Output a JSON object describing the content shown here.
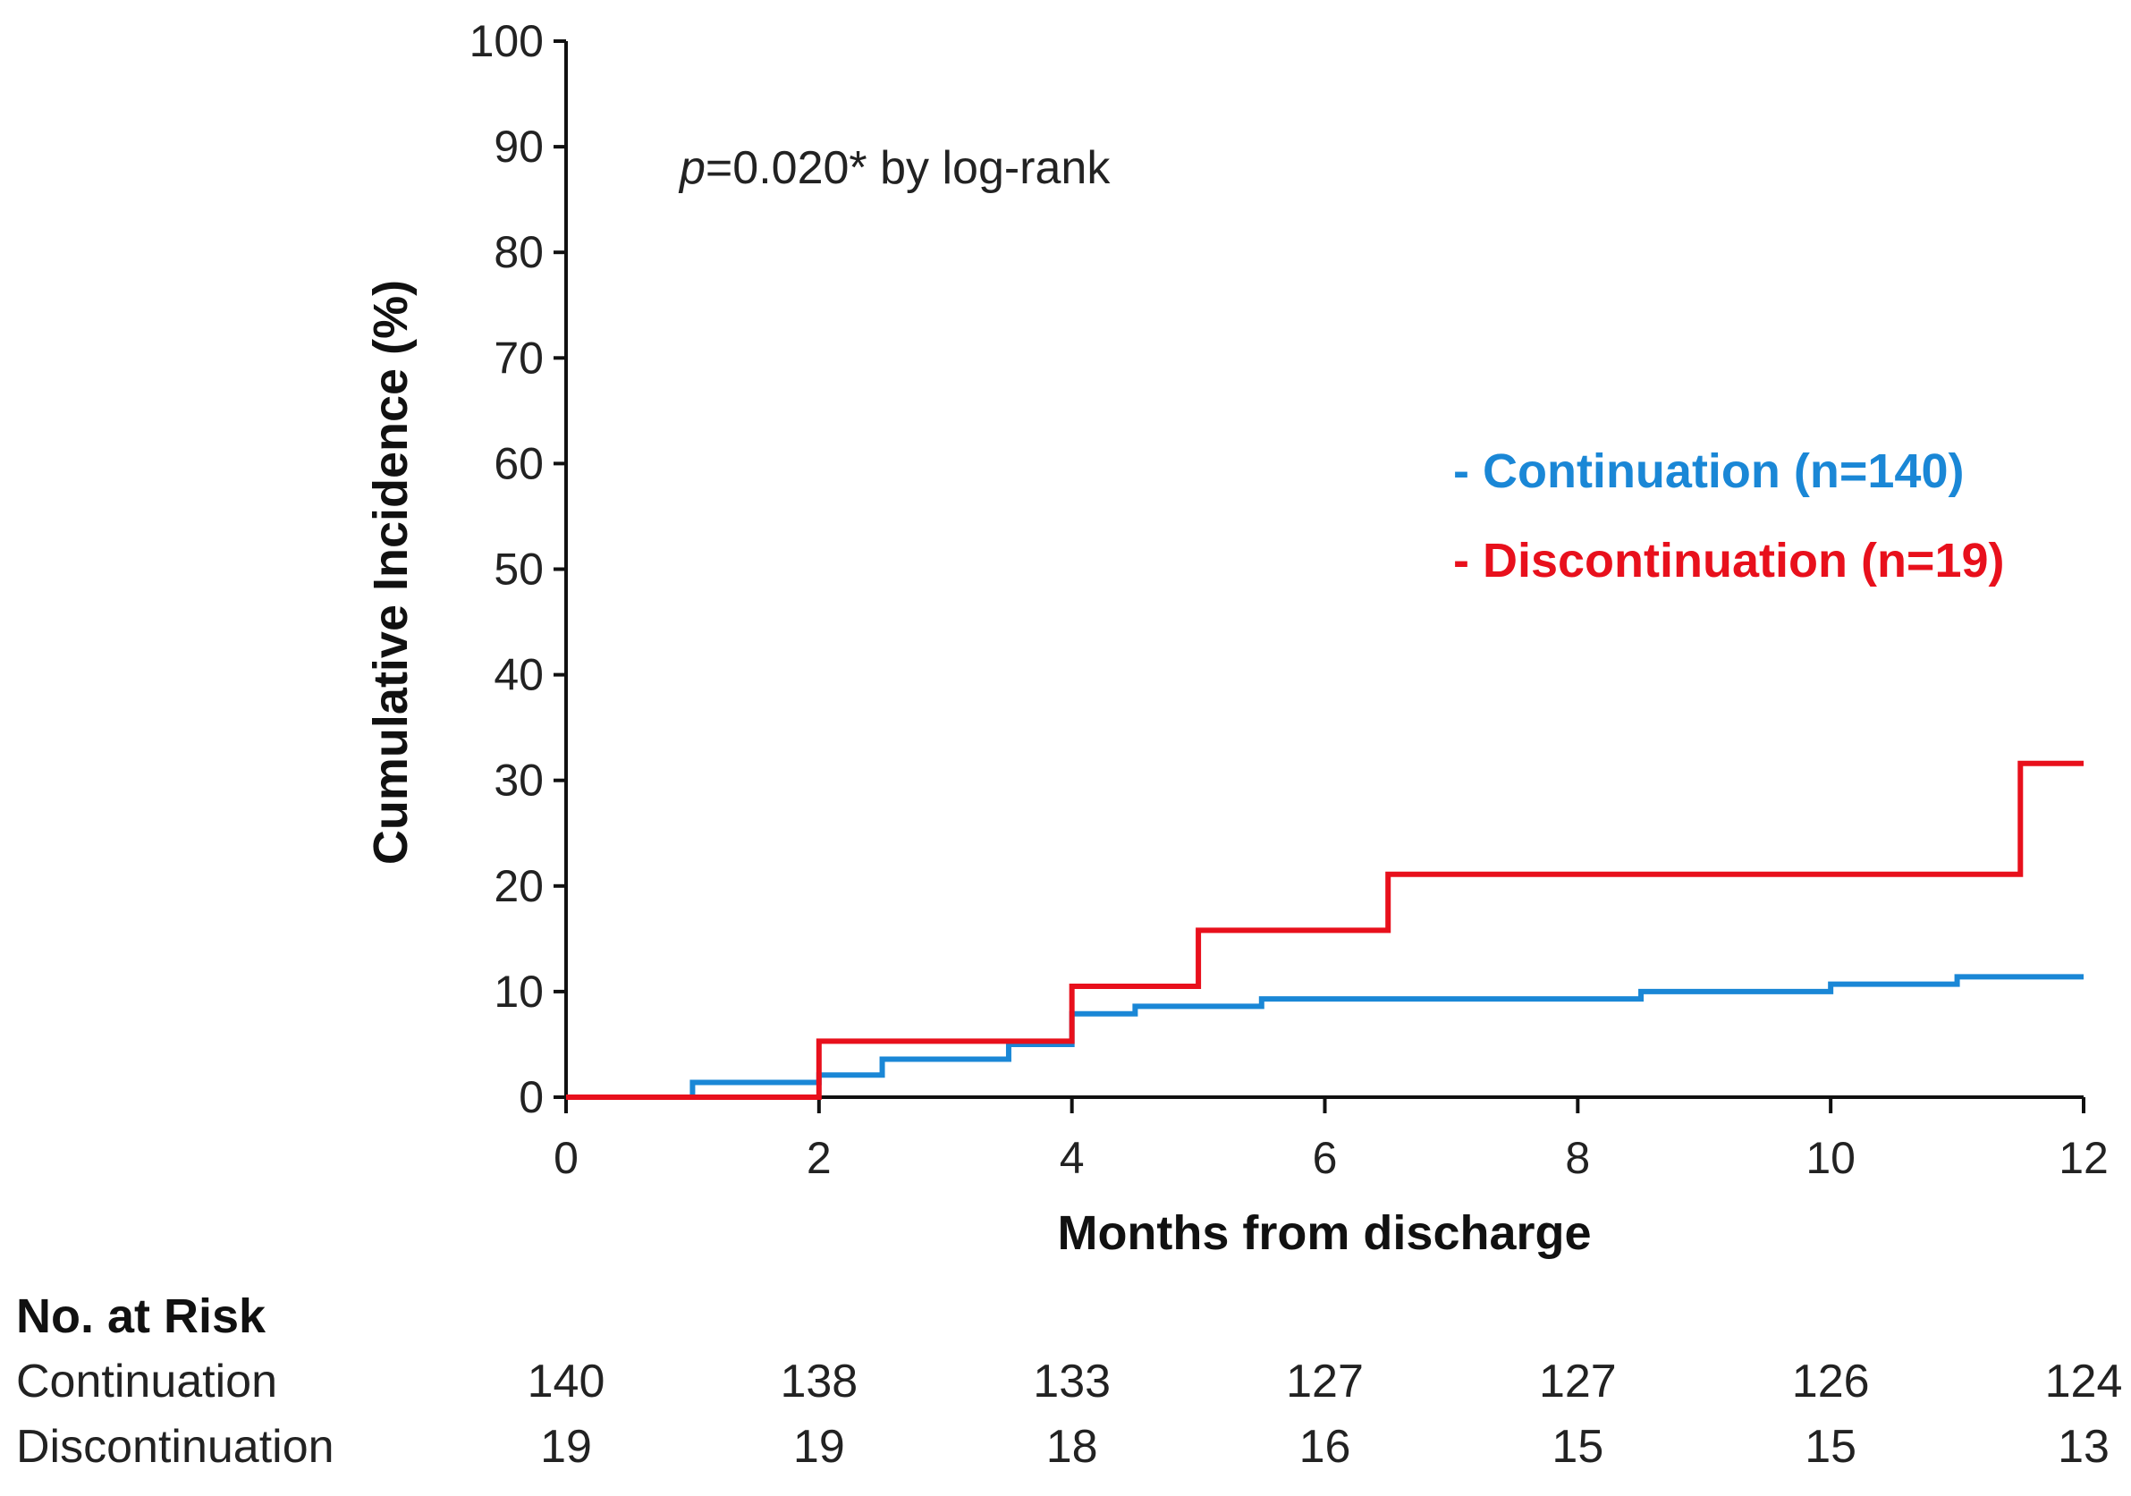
{
  "chart_data": {
    "type": "line",
    "title": "",
    "xlabel": "Months from discharge",
    "ylabel": "Cumulative Incidence (%)",
    "xlim": [
      0,
      12
    ],
    "ylim": [
      0,
      100
    ],
    "xticks": [
      0,
      2,
      4,
      6,
      8,
      10,
      12
    ],
    "yticks": [
      0,
      10,
      20,
      30,
      40,
      50,
      60,
      70,
      80,
      90,
      100
    ],
    "xtick_labels": [
      "0",
      "2",
      "4",
      "6",
      "8",
      "10",
      "12"
    ],
    "ytick_labels": [
      "0",
      "10",
      "20",
      "30",
      "40",
      "50",
      "60",
      "70",
      "80",
      "90",
      "100"
    ],
    "grid": false,
    "annotation": {
      "p_symbol": "p",
      "p_rest": "=0.020* by log-rank"
    },
    "legend_position": "right",
    "series": [
      {
        "name": "- Continuation (n=140)",
        "color": "#1a87d6",
        "step": true,
        "x": [
          0,
          1,
          2,
          2.5,
          3.5,
          4,
          4.5,
          5.5,
          8.5,
          10,
          11,
          12
        ],
        "y": [
          0,
          1.4,
          2.1,
          3.6,
          5.0,
          7.9,
          8.6,
          9.3,
          10.0,
          10.7,
          11.4,
          11.4
        ]
      },
      {
        "name": "- Discontinuation (n=19)",
        "color": "#e8101c",
        "step": true,
        "x": [
          0,
          2,
          4,
          5,
          6.5,
          11.5,
          12
        ],
        "y": [
          0,
          5.3,
          10.5,
          15.8,
          21.1,
          31.6,
          31.6
        ]
      }
    ],
    "risk_table": {
      "title": "No. at Risk",
      "times": [
        0,
        2,
        4,
        6,
        8,
        10,
        12
      ],
      "rows": [
        {
          "label": "Continuation",
          "values": [
            "140",
            "138",
            "133",
            "127",
            "127",
            "126",
            "124"
          ]
        },
        {
          "label": "Discontinuation",
          "values": [
            "19",
            "19",
            "18",
            "16",
            "15",
            "15",
            "13"
          ]
        }
      ]
    }
  }
}
